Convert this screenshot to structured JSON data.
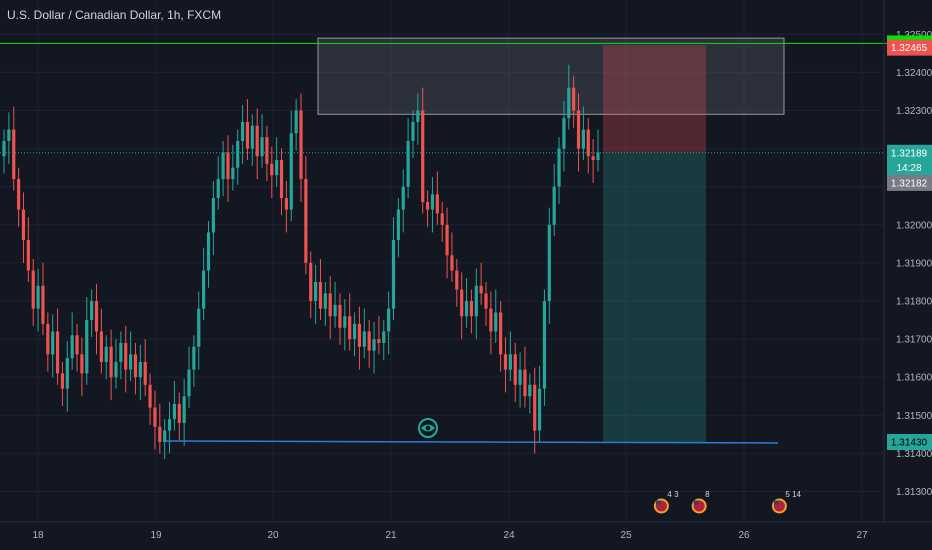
{
  "header": {
    "symbol_title": "U.S. Dollar / Canadian Dollar, 1h, FXCM"
  },
  "chart_data": {
    "type": "candlestick",
    "title": "U.S. Dollar / Canadian Dollar, 1h, FXCM",
    "ylim": [
      1.3122,
      1.3259
    ],
    "y_ticks": [
      "1.32500",
      "1.32400",
      "1.32300",
      "1.32200",
      "1.32100",
      "1.32000",
      "1.31900",
      "1.31800",
      "1.31700",
      "1.31600",
      "1.31500",
      "1.31400",
      "1.31300"
    ],
    "x_ticks": [
      "18",
      "19",
      "20",
      "21",
      "24",
      "25",
      "26",
      "27"
    ],
    "grid": true,
    "colors": {
      "up": "#26a69a",
      "down": "#ef5350",
      "background": "#131722",
      "grid": "#1e2230"
    },
    "close_series": [
      1.3222,
      1.3225,
      1.3212,
      1.3204,
      1.3196,
      1.3188,
      1.3178,
      1.3184,
      1.3174,
      1.3166,
      1.3172,
      1.3161,
      1.3157,
      1.3165,
      1.3171,
      1.3166,
      1.3161,
      1.3175,
      1.318,
      1.3172,
      1.3164,
      1.3168,
      1.316,
      1.3164,
      1.3169,
      1.3162,
      1.3166,
      1.316,
      1.3164,
      1.3158,
      1.3152,
      1.3147,
      1.3143,
      1.3146,
      1.3149,
      1.3153,
      1.3148,
      1.3155,
      1.3162,
      1.3168,
      1.3178,
      1.3188,
      1.3198,
      1.3207,
      1.3212,
      1.3219,
      1.3212,
      1.3215,
      1.3222,
      1.3227,
      1.322,
      1.3226,
      1.3218,
      1.3223,
      1.3216,
      1.3213,
      1.3217,
      1.3207,
      1.3204,
      1.3224,
      1.323,
      1.3212,
      1.319,
      1.318,
      1.3185,
      1.3178,
      1.3182,
      1.3176,
      1.3179,
      1.3173,
      1.3176,
      1.317,
      1.3174,
      1.3168,
      1.3172,
      1.3167,
      1.317,
      1.3169,
      1.3172,
      1.3178,
      1.3196,
      1.3204,
      1.321,
      1.3222,
      1.3227,
      1.323,
      1.3206,
      1.3204,
      1.3208,
      1.3203,
      1.32,
      1.3192,
      1.3188,
      1.3183,
      1.3176,
      1.318,
      1.3176,
      1.3184,
      1.3182,
      1.3178,
      1.3172,
      1.3177,
      1.3166,
      1.3162,
      1.3166,
      1.3158,
      1.3162,
      1.3155,
      1.3158,
      1.3146,
      1.3157,
      1.318,
      1.32,
      1.321,
      1.322,
      1.3228,
      1.3236,
      1.323,
      1.322,
      1.3225,
      1.3218,
      1.3217,
      1.3219
    ],
    "resistance_zone": {
      "top": 1.3249,
      "bottom": 1.3229
    },
    "support_line": 1.3143,
    "position": {
      "type": "short",
      "entry": 1.32189,
      "stop": 1.32465,
      "target": 1.3143
    },
    "price_tags": [
      {
        "label": "1.32476",
        "value": 1.32476,
        "color": "#00e600",
        "text_color": "#000000"
      },
      {
        "label": "1.32465",
        "value": 1.32465,
        "color": "#ef5350",
        "text_color": "#ffffff"
      },
      {
        "label": "1.32189",
        "value": 1.32189,
        "color": "#26a69a",
        "text_color": "#ffffff"
      },
      {
        "label": "14:28",
        "value": 1.3215,
        "color": "#26a69a",
        "text_color": "#ffffff"
      },
      {
        "label": "1.32182",
        "value": 1.3211,
        "color": "#787b86",
        "text_color": "#ffffff"
      },
      {
        "label": "1.31430",
        "value": 1.3143,
        "color": "#26a69a",
        "text_color": "#000000"
      }
    ],
    "events": [
      {
        "label": "4 3",
        "x_day": 25.3
      },
      {
        "label": "8",
        "x_day": 25.62
      },
      {
        "label": "5 14",
        "x_day": 26.3
      }
    ]
  }
}
